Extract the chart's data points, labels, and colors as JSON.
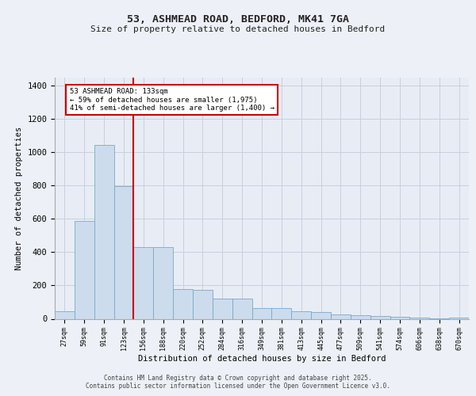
{
  "title1": "53, ASHMEAD ROAD, BEDFORD, MK41 7GA",
  "title2": "Size of property relative to detached houses in Bedford",
  "xlabel": "Distribution of detached houses by size in Bedford",
  "ylabel": "Number of detached properties",
  "categories": [
    "27sqm",
    "59sqm",
    "91sqm",
    "123sqm",
    "156sqm",
    "188sqm",
    "220sqm",
    "252sqm",
    "284sqm",
    "316sqm",
    "349sqm",
    "381sqm",
    "413sqm",
    "445sqm",
    "477sqm",
    "509sqm",
    "541sqm",
    "574sqm",
    "606sqm",
    "638sqm",
    "670sqm"
  ],
  "values": [
    45,
    585,
    1045,
    795,
    430,
    430,
    180,
    175,
    120,
    120,
    62,
    62,
    45,
    42,
    24,
    22,
    16,
    10,
    6,
    3,
    8
  ],
  "bar_color": "#ccdcec",
  "bar_edge_color": "#7aa8cc",
  "red_line_x": 3.5,
  "annotation_text": "53 ASHMEAD ROAD: 133sqm\n← 59% of detached houses are smaller (1,975)\n41% of semi-detached houses are larger (1,400) →",
  "annotation_box_color": "#ffffff",
  "annotation_box_edge": "#cc0000",
  "red_line_color": "#cc0000",
  "grid_color": "#c8d0dc",
  "background_color": "#e8edf5",
  "fig_background_color": "#edf1f7",
  "ylim": [
    0,
    1450
  ],
  "yticks": [
    0,
    200,
    400,
    600,
    800,
    1000,
    1200,
    1400
  ],
  "footer1": "Contains HM Land Registry data © Crown copyright and database right 2025.",
  "footer2": "Contains public sector information licensed under the Open Government Licence v3.0."
}
